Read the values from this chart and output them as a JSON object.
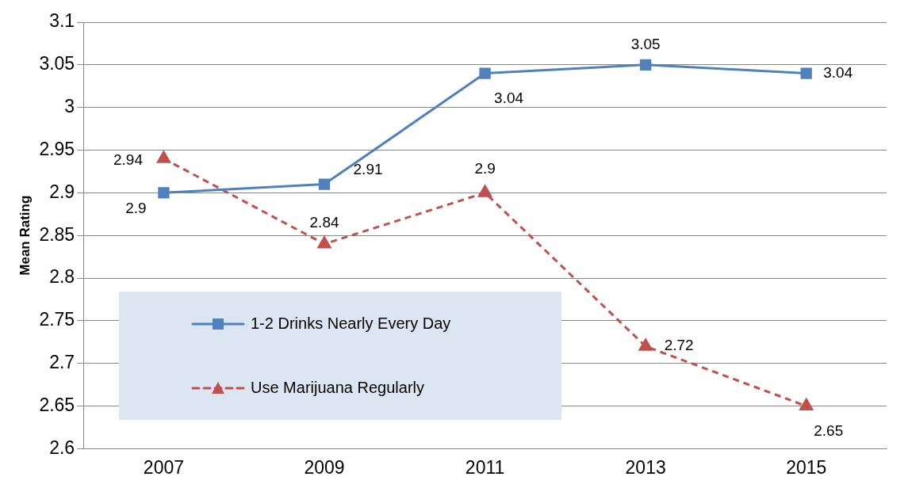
{
  "chart_data": {
    "type": "line",
    "ylabel": "Mean Rating",
    "categories": [
      "2007",
      "2009",
      "2011",
      "2013",
      "2015"
    ],
    "series": [
      {
        "name": "1-2 Drinks Nearly Every Day",
        "color": "#4f81bd",
        "values": [
          2.9,
          2.91,
          3.04,
          3.05,
          3.04
        ],
        "marker": "square",
        "line_style": "solid"
      },
      {
        "name": "Use Marijuana Regularly",
        "color": "#c0504d",
        "values": [
          2.94,
          2.84,
          2.9,
          2.72,
          2.65
        ],
        "marker": "triangle",
        "line_style": "dashed"
      }
    ],
    "ylim": [
      2.6,
      3.1
    ],
    "yticks": [
      2.6,
      2.65,
      2.7,
      2.75,
      2.8,
      2.85,
      2.9,
      2.95,
      3,
      3.05,
      3.1
    ],
    "grid": "y",
    "legend": "bottom left",
    "data_labels": true
  }
}
